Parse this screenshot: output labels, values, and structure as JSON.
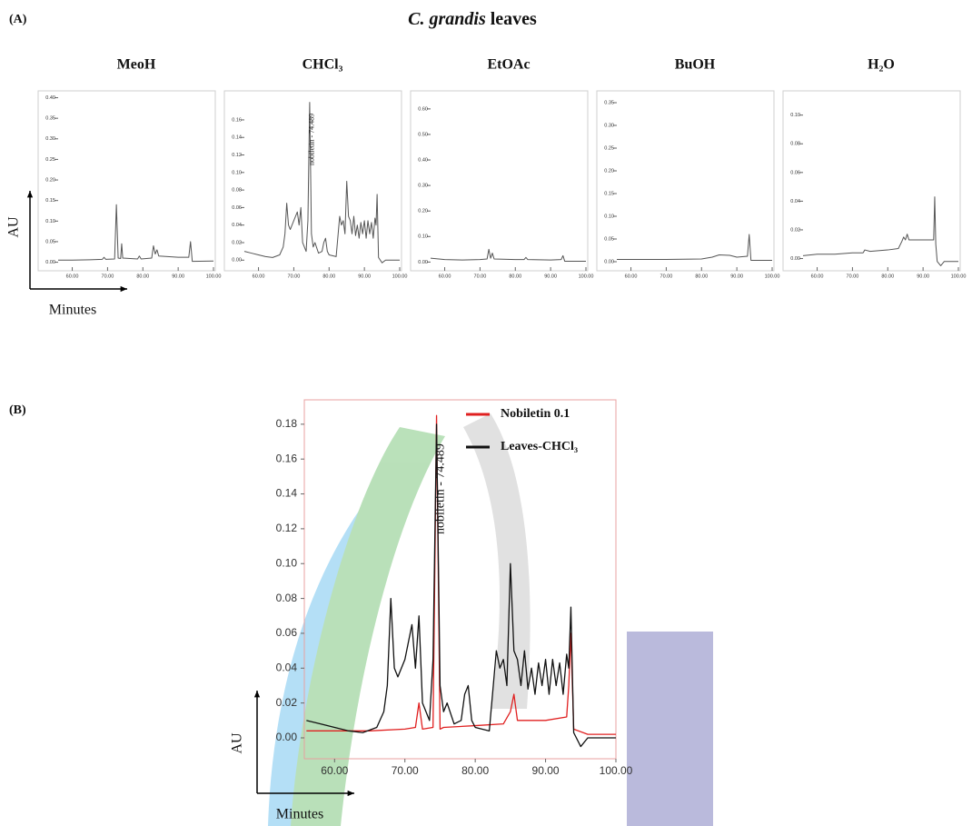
{
  "figure": {
    "panel_a": "(A)",
    "panel_b": "(B)",
    "title": [
      "C. grandis",
      "leaves"
    ]
  },
  "chart_data": [
    {
      "type": "line",
      "title": "MeoH",
      "ylabel": "AU",
      "xlabel": "Minutes",
      "xlim": [
        56,
        100
      ],
      "ylim": [
        -0.012,
        0.41
      ],
      "xticks": [
        {
          "value": 60,
          "label": "60.00"
        },
        {
          "value": 70,
          "label": "70.00"
        },
        {
          "value": 80,
          "label": "80.00"
        },
        {
          "value": 90,
          "label": "90.00"
        },
        {
          "value": 100,
          "label": "100.00"
        }
      ],
      "yticks": [
        {
          "value": 0,
          "label": "0.00"
        },
        {
          "value": 0.05,
          "label": "0.05"
        },
        {
          "value": 0.1,
          "label": "0.10"
        },
        {
          "value": 0.15,
          "label": "0.15"
        },
        {
          "value": 0.2,
          "label": "0.20"
        },
        {
          "value": 0.25,
          "label": "0.25"
        },
        {
          "value": 0.3,
          "label": "0.30"
        },
        {
          "value": 0.35,
          "label": "0.35"
        },
        {
          "value": 0.4,
          "label": "0.40"
        }
      ],
      "series": [
        {
          "color": "#555555",
          "x": [
            56,
            60,
            65,
            68.5,
            69,
            69.5,
            72,
            72.5,
            73,
            73.7,
            74,
            74.3,
            78.5,
            79,
            79.5,
            82.5,
            83,
            83.5,
            84,
            84.5,
            90,
            93,
            93.5,
            94,
            100
          ],
          "values": [
            0.005,
            0.005,
            0.006,
            0.007,
            0.012,
            0.007,
            0.008,
            0.14,
            0.01,
            0.009,
            0.045,
            0.01,
            0.008,
            0.015,
            0.008,
            0.01,
            0.04,
            0.02,
            0.03,
            0.015,
            0.012,
            0.012,
            0.05,
            0.002,
            0.003
          ]
        }
      ]
    },
    {
      "type": "line",
      "title": "CHCl₃",
      "xlim": [
        56,
        100
      ],
      "ylim": [
        -0.008,
        0.19
      ],
      "xticks": [
        {
          "value": 60,
          "label": "60.00"
        },
        {
          "value": 70,
          "label": "70.00"
        },
        {
          "value": 80,
          "label": "80.00"
        },
        {
          "value": 90,
          "label": "90.00"
        },
        {
          "value": 100,
          "label": "100.00"
        }
      ],
      "yticks": [
        {
          "value": 0,
          "label": "0.00"
        },
        {
          "value": 0.02,
          "label": "0.02"
        },
        {
          "value": 0.04,
          "label": "0.04"
        },
        {
          "value": 0.06,
          "label": "0.06"
        },
        {
          "value": 0.08,
          "label": "0.08"
        },
        {
          "value": 0.1,
          "label": "0.10"
        },
        {
          "value": 0.12,
          "label": "0.12"
        },
        {
          "value": 0.14,
          "label": "0.14"
        },
        {
          "value": 0.16,
          "label": "0.16"
        }
      ],
      "annotation": {
        "text": "nobiletin - 74.489",
        "x": 74.489
      },
      "series": [
        {
          "color": "#555555",
          "x": [
            56,
            58,
            60,
            62,
            64,
            66,
            67,
            67.5,
            68,
            68.5,
            69,
            70,
            71,
            71.5,
            72,
            72.5,
            73,
            73.5,
            74,
            74.5,
            75,
            75.5,
            76,
            77,
            78,
            78.5,
            79,
            79.5,
            80,
            82,
            83,
            83.5,
            84,
            84.5,
            85,
            85.5,
            86,
            86.5,
            87,
            87.5,
            88,
            88.5,
            89,
            89.5,
            90,
            90.5,
            91,
            91.5,
            92,
            92.5,
            93,
            93.3,
            93.6,
            94,
            95,
            96,
            97,
            100
          ],
          "values": [
            0.01,
            0.008,
            0.006,
            0.004,
            0.003,
            0.006,
            0.015,
            0.03,
            0.065,
            0.04,
            0.035,
            0.045,
            0.055,
            0.04,
            0.06,
            0.02,
            0.015,
            0.01,
            0.045,
            0.18,
            0.03,
            0.015,
            0.02,
            0.008,
            0.01,
            0.02,
            0.025,
            0.01,
            0.006,
            0.004,
            0.05,
            0.04,
            0.045,
            0.03,
            0.09,
            0.05,
            0.045,
            0.03,
            0.05,
            0.028,
            0.04,
            0.025,
            0.043,
            0.03,
            0.045,
            0.025,
            0.045,
            0.03,
            0.043,
            0.025,
            0.048,
            0.04,
            0.075,
            0.003,
            -0.003,
            0,
            0,
            0
          ]
        }
      ]
    },
    {
      "type": "line",
      "title": "EtOAc",
      "xlim": [
        56,
        100
      ],
      "ylim": [
        -0.02,
        0.66
      ],
      "xticks": [
        {
          "value": 60,
          "label": "60.00"
        },
        {
          "value": 70,
          "label": "70.00"
        },
        {
          "value": 80,
          "label": "80.00"
        },
        {
          "value": 90,
          "label": "90.00"
        },
        {
          "value": 100,
          "label": "100.00"
        }
      ],
      "yticks": [
        {
          "value": 0,
          "label": "0.00"
        },
        {
          "value": 0.1,
          "label": "0.10"
        },
        {
          "value": 0.2,
          "label": "0.20"
        },
        {
          "value": 0.3,
          "label": "0.30"
        },
        {
          "value": 0.4,
          "label": "0.40"
        },
        {
          "value": 0.5,
          "label": "0.50"
        },
        {
          "value": 0.6,
          "label": "0.60"
        }
      ],
      "series": [
        {
          "color": "#555555",
          "x": [
            56,
            60,
            65,
            70,
            72,
            72.5,
            73,
            73.5,
            74,
            80,
            82.5,
            83,
            83.5,
            90,
            93,
            93.5,
            94,
            100
          ],
          "values": [
            0.015,
            0.01,
            0.008,
            0.01,
            0.012,
            0.05,
            0.015,
            0.035,
            0.012,
            0.01,
            0.01,
            0.018,
            0.01,
            0.008,
            0.01,
            0.025,
            0.003,
            0.003
          ]
        }
      ]
    },
    {
      "type": "line",
      "title": "BuOH",
      "xlim": [
        56,
        100
      ],
      "ylim": [
        -0.012,
        0.37
      ],
      "xticks": [
        {
          "value": 60,
          "label": "60.00"
        },
        {
          "value": 70,
          "label": "70.00"
        },
        {
          "value": 80,
          "label": "80.00"
        },
        {
          "value": 90,
          "label": "90.00"
        },
        {
          "value": 100,
          "label": "100.00"
        }
      ],
      "yticks": [
        {
          "value": 0,
          "label": "0.00"
        },
        {
          "value": 0.05,
          "label": "0.05"
        },
        {
          "value": 0.1,
          "label": "0.10"
        },
        {
          "value": 0.15,
          "label": "0.15"
        },
        {
          "value": 0.2,
          "label": "0.20"
        },
        {
          "value": 0.25,
          "label": "0.25"
        },
        {
          "value": 0.3,
          "label": "0.30"
        },
        {
          "value": 0.35,
          "label": "0.35"
        }
      ],
      "series": [
        {
          "color": "#555555",
          "x": [
            56,
            60,
            70,
            80,
            83,
            85,
            88,
            90,
            93,
            93.5,
            94,
            100
          ],
          "values": [
            0.005,
            0.005,
            0.005,
            0.006,
            0.01,
            0.015,
            0.014,
            0.01,
            0.012,
            0.06,
            0.003,
            0.003
          ]
        }
      ]
    },
    {
      "type": "line",
      "title": "H₂O",
      "xlim": [
        56,
        100
      ],
      "ylim": [
        -0.006,
        0.115
      ],
      "xticks": [
        {
          "value": 60,
          "label": "60.00"
        },
        {
          "value": 70,
          "label": "70.00"
        },
        {
          "value": 80,
          "label": "80.00"
        },
        {
          "value": 90,
          "label": "90.00"
        },
        {
          "value": 100,
          "label": "100.00"
        }
      ],
      "yticks": [
        {
          "value": 0,
          "label": "0.00"
        },
        {
          "value": 0.02,
          "label": "0.02"
        },
        {
          "value": 0.04,
          "label": "0.04"
        },
        {
          "value": 0.06,
          "label": "0.06"
        },
        {
          "value": 0.08,
          "label": "0.08"
        },
        {
          "value": 0.1,
          "label": "0.10"
        }
      ],
      "series": [
        {
          "color": "#555555",
          "x": [
            56,
            60,
            65,
            70,
            73,
            73.5,
            75,
            80,
            83,
            84,
            84.5,
            85,
            85.5,
            86,
            90,
            93,
            93.3,
            93.6,
            94,
            95,
            96,
            100
          ],
          "values": [
            0.002,
            0.003,
            0.003,
            0.004,
            0.004,
            0.006,
            0.005,
            0.006,
            0.007,
            0.012,
            0.015,
            0.013,
            0.017,
            0.013,
            0.013,
            0.013,
            0.043,
            0.01,
            -0.002,
            -0.005,
            -0.002,
            -0.002
          ]
        }
      ]
    },
    {
      "type": "line",
      "ylabel": "AU",
      "xlabel": "Minutes",
      "legend": "upper right",
      "xlim": [
        55.7,
        100
      ],
      "ylim": [
        -0.012,
        0.194
      ],
      "xticks": [
        {
          "value": 60,
          "label": "60.00"
        },
        {
          "value": 70,
          "label": "70.00"
        },
        {
          "value": 80,
          "label": "80.00"
        },
        {
          "value": 90,
          "label": "90.00"
        },
        {
          "value": 100,
          "label": "100.00"
        }
      ],
      "yticks": [
        {
          "value": 0,
          "label": "0.00"
        },
        {
          "value": 0.02,
          "label": "0.02"
        },
        {
          "value": 0.04,
          "label": "0.04"
        },
        {
          "value": 0.06,
          "label": "0.06"
        },
        {
          "value": 0.08,
          "label": "0.08"
        },
        {
          "value": 0.1,
          "label": "0.10"
        },
        {
          "value": 0.12,
          "label": "0.12"
        },
        {
          "value": 0.14,
          "label": "0.14"
        },
        {
          "value": 0.16,
          "label": "0.16"
        },
        {
          "value": 0.18,
          "label": "0.18"
        }
      ],
      "annotation": {
        "text": "nobiletin - 74.489",
        "x": 74.489
      },
      "series": [
        {
          "name": "Nobiletin 0.1",
          "color": "#e02020",
          "x": [
            56,
            60,
            65,
            70,
            71.5,
            72,
            72.5,
            74,
            74.5,
            75,
            75.5,
            80,
            84,
            85,
            85.5,
            86,
            86.5,
            90,
            93,
            93.3,
            93.6,
            94,
            96,
            100
          ],
          "values": [
            0.004,
            0.004,
            0.004,
            0.005,
            0.006,
            0.02,
            0.005,
            0.006,
            0.185,
            0.005,
            0.006,
            0.007,
            0.008,
            0.015,
            0.025,
            0.01,
            0.01,
            0.01,
            0.012,
            0.03,
            0.06,
            0.005,
            0.002,
            0.002
          ]
        },
        {
          "name": "Leaves-CHCl₃",
          "color": "#111111",
          "x": [
            56,
            58,
            60,
            62,
            64,
            66,
            67,
            67.5,
            68,
            68.5,
            69,
            70,
            71,
            71.5,
            72,
            72.5,
            73,
            73.5,
            74,
            74.5,
            75,
            75.5,
            76,
            77,
            78,
            78.5,
            79,
            79.5,
            80,
            82,
            83,
            83.5,
            84,
            84.5,
            85,
            85.5,
            86,
            86.5,
            87,
            87.5,
            88,
            88.5,
            89,
            89.5,
            90,
            90.5,
            91,
            91.5,
            92,
            92.5,
            93,
            93.3,
            93.6,
            94,
            95,
            96,
            97,
            100
          ],
          "values": [
            0.01,
            0.008,
            0.006,
            0.004,
            0.003,
            0.006,
            0.015,
            0.03,
            0.08,
            0.04,
            0.035,
            0.045,
            0.065,
            0.04,
            0.07,
            0.02,
            0.015,
            0.01,
            0.045,
            0.18,
            0.03,
            0.015,
            0.02,
            0.008,
            0.01,
            0.025,
            0.03,
            0.01,
            0.006,
            0.004,
            0.05,
            0.04,
            0.045,
            0.03,
            0.1,
            0.05,
            0.045,
            0.03,
            0.05,
            0.028,
            0.04,
            0.025,
            0.043,
            0.03,
            0.045,
            0.025,
            0.045,
            0.03,
            0.043,
            0.025,
            0.048,
            0.04,
            0.075,
            0.003,
            -0.005,
            0,
            0,
            0
          ]
        }
      ]
    }
  ]
}
